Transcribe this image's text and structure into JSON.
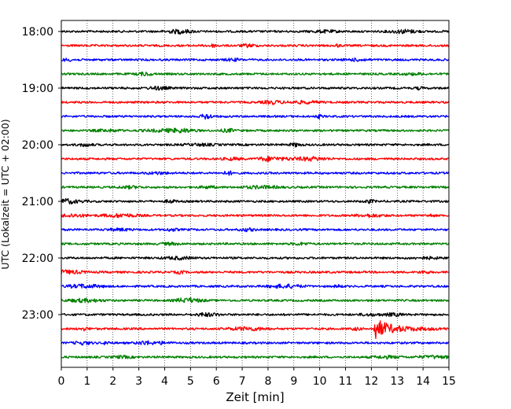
{
  "chart_data": {
    "type": "line",
    "title": "",
    "xlabel": "Zeit  [min]",
    "ylabel": "UTC (Lokalzeit = UTC + 02:00)",
    "xlim": [
      0,
      15
    ],
    "x_ticks": [
      "0",
      "1",
      "2",
      "3",
      "4",
      "5",
      "6",
      "7",
      "8",
      "9",
      "10",
      "11",
      "12",
      "13",
      "14",
      "15"
    ],
    "y_tick_labels": [
      "18:00",
      "19:00",
      "20:00",
      "21:00",
      "22:00",
      "23:00"
    ],
    "grid": "vertical dotted",
    "trace_interval_min": 15,
    "trace_colors": [
      "#000000",
      "#ff0000",
      "#0000ff",
      "#008000"
    ],
    "traces": [
      {
        "start": "18:00",
        "color": "#000000"
      },
      {
        "start": "18:15",
        "color": "#ff0000"
      },
      {
        "start": "18:30",
        "color": "#0000ff"
      },
      {
        "start": "18:45",
        "color": "#008000"
      },
      {
        "start": "19:00",
        "color": "#000000"
      },
      {
        "start": "19:15",
        "color": "#ff0000"
      },
      {
        "start": "19:30",
        "color": "#0000ff"
      },
      {
        "start": "19:45",
        "color": "#008000"
      },
      {
        "start": "20:00",
        "color": "#000000"
      },
      {
        "start": "20:15",
        "color": "#ff0000"
      },
      {
        "start": "20:30",
        "color": "#0000ff"
      },
      {
        "start": "20:45",
        "color": "#008000"
      },
      {
        "start": "21:00",
        "color": "#000000"
      },
      {
        "start": "21:15",
        "color": "#ff0000"
      },
      {
        "start": "21:30",
        "color": "#0000ff"
      },
      {
        "start": "21:45",
        "color": "#008000"
      },
      {
        "start": "22:00",
        "color": "#000000"
      },
      {
        "start": "22:15",
        "color": "#ff0000"
      },
      {
        "start": "22:30",
        "color": "#0000ff"
      },
      {
        "start": "22:45",
        "color": "#008000"
      },
      {
        "start": "23:00",
        "color": "#000000"
      },
      {
        "start": "23:15",
        "color": "#ff0000",
        "event_minute": 12.1
      },
      {
        "start": "23:30",
        "color": "#0000ff"
      },
      {
        "start": "23:45",
        "color": "#008000"
      }
    ]
  }
}
